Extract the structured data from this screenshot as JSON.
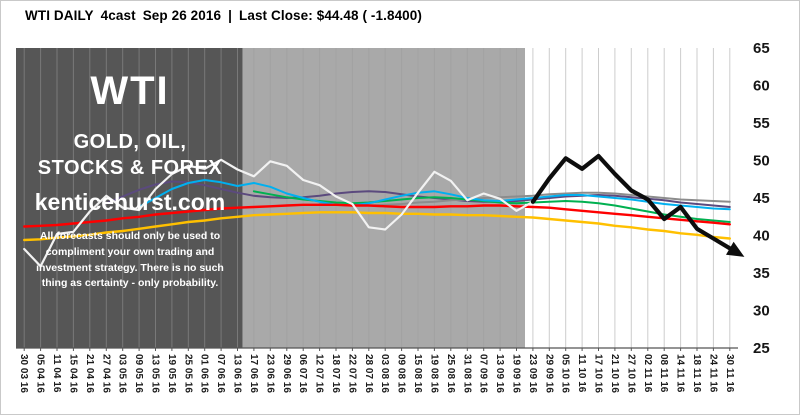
{
  "header": {
    "instrument": "WTI DAILY",
    "method": "4cast",
    "date_text": "Sep 26 2016",
    "divider": "|",
    "close_text": "Last Close: $44.48 ( -1.8400)"
  },
  "overlay": {
    "symbol": "WTI",
    "line1": "GOLD, OIL,",
    "line2": "STOCKS & FOREX",
    "site": "kenticehurst.com",
    "disclaimer": "All forecasts should only be used to compliment your own trading and investment strategy. There is no such thing as certainty - only probability."
  },
  "chart_data": {
    "type": "line",
    "title": "WTI DAILY 4cast Sep 26 2016 | Last Close: $44.48 ( -1.8400)",
    "ylim": [
      25,
      65
    ],
    "y_ticks": [
      65,
      60,
      55,
      50,
      45,
      40,
      35,
      30,
      25
    ],
    "grid": "vertical",
    "legend": "none",
    "categories": [
      "30 03 16",
      "05 04 16",
      "11 04 16",
      "15 04 16",
      "21 04 16",
      "27 04 16",
      "03 05 16",
      "09 05 16",
      "13 05 16",
      "19 05 16",
      "25 05 16",
      "01 06 16",
      "07 06 16",
      "13 06 16",
      "17 06 16",
      "23 06 16",
      "29 06 16",
      "06 07 16",
      "12 07 16",
      "18 07 16",
      "22 07 16",
      "28 07 16",
      "03 08 16",
      "09 08 16",
      "15 08 16",
      "19 08 16",
      "25 08 16",
      "31 08 16",
      "07 09 16",
      "13 09 16",
      "19 09 16",
      "23 09 16",
      "29 09 16",
      "05 10 16",
      "11 10 16",
      "17 10 16",
      "21 10 16",
      "27 10 16",
      "02 11 16",
      "08 11 16",
      "14 11 16",
      "18 11 16",
      "24 11 16",
      "30 11 16"
    ],
    "regions": [
      {
        "name": "history-dark",
        "from_frac": 0.0,
        "to_frac": 0.314,
        "color": "#565656"
      },
      {
        "name": "history-light",
        "from_frac": 0.314,
        "to_frac": 0.705,
        "color": "#a9a9a9"
      },
      {
        "name": "forecast-zone",
        "from_frac": 0.705,
        "to_frac": 1.0,
        "color": "#ffffff"
      }
    ],
    "series": [
      {
        "name": "purple-model",
        "color": "#5b4a7e",
        "width": 2,
        "values": [
          null,
          null,
          null,
          null,
          null,
          44.3,
          45.2,
          46.1,
          46.8,
          47.2,
          47.1,
          46.7,
          46.2,
          45.7,
          45.3,
          45.1,
          45.0,
          45.1,
          45.3,
          45.6,
          45.8,
          45.9,
          45.8,
          45.5,
          45.2,
          45.0,
          44.8,
          44.6,
          44.5,
          44.5,
          44.6,
          44.8,
          45.0,
          45.2,
          45.3,
          45.4,
          45.3,
          45.1,
          44.9,
          44.7,
          44.4,
          44.2,
          44.0,
          43.8
        ]
      },
      {
        "name": "gray-model",
        "color": "#8c8c8c",
        "width": 2,
        "values": [
          null,
          null,
          null,
          null,
          null,
          null,
          null,
          null,
          null,
          null,
          null,
          null,
          null,
          null,
          null,
          null,
          null,
          null,
          44.2,
          44.1,
          44.0,
          44.0,
          44.1,
          44.2,
          44.4,
          44.5,
          44.7,
          44.8,
          45.0,
          45.1,
          45.2,
          45.3,
          45.5,
          45.6,
          45.7,
          45.7,
          45.6,
          45.4,
          45.2,
          45.0,
          44.8,
          44.7,
          44.6,
          44.5
        ]
      },
      {
        "name": "green-model",
        "color": "#00b050",
        "width": 2,
        "values": [
          null,
          null,
          null,
          null,
          null,
          null,
          null,
          null,
          null,
          null,
          null,
          null,
          null,
          null,
          45.9,
          45.5,
          45.1,
          44.8,
          44.6,
          44.4,
          44.3,
          44.4,
          44.6,
          44.8,
          45.0,
          45.1,
          45.0,
          44.8,
          44.6,
          44.4,
          44.3,
          44.4,
          44.5,
          44.6,
          44.5,
          44.3,
          44.0,
          43.6,
          43.2,
          42.8,
          42.5,
          42.2,
          42.0,
          41.8
        ]
      },
      {
        "name": "cyan-model",
        "color": "#00b0f0",
        "width": 2,
        "values": [
          null,
          null,
          null,
          null,
          null,
          null,
          null,
          43.8,
          45.0,
          46.2,
          47.0,
          47.4,
          47.1,
          46.6,
          47.0,
          46.5,
          45.6,
          45.0,
          44.5,
          44.1,
          44.0,
          44.3,
          44.8,
          45.3,
          45.7,
          45.9,
          45.5,
          45.0,
          44.7,
          44.6,
          44.8,
          45.0,
          45.2,
          45.4,
          45.4,
          45.2,
          45.0,
          44.8,
          44.5,
          44.2,
          44.0,
          43.8,
          43.6,
          43.5
        ]
      },
      {
        "name": "yellow-ma",
        "color": "#ffc000",
        "width": 2.4,
        "values": [
          39.4,
          39.5,
          39.7,
          39.9,
          40.1,
          40.4,
          40.6,
          40.9,
          41.2,
          41.5,
          41.8,
          42.0,
          42.3,
          42.5,
          42.7,
          42.8,
          42.9,
          43.0,
          43.1,
          43.1,
          43.1,
          43.0,
          43.0,
          42.9,
          42.9,
          42.8,
          42.8,
          42.7,
          42.7,
          42.6,
          42.5,
          42.4,
          42.2,
          42.0,
          41.8,
          41.6,
          41.3,
          41.1,
          40.8,
          40.6,
          40.3,
          40.1,
          39.8,
          39.6
        ]
      },
      {
        "name": "red-ma",
        "color": "#fe0000",
        "width": 2.4,
        "values": [
          41.2,
          41.3,
          41.4,
          41.6,
          41.8,
          42.0,
          42.3,
          42.5,
          42.8,
          43.0,
          43.2,
          43.4,
          43.6,
          43.7,
          43.8,
          43.9,
          44.0,
          44.1,
          44.1,
          44.1,
          44.0,
          44.0,
          43.9,
          43.8,
          43.8,
          43.8,
          43.9,
          43.9,
          44.0,
          44.0,
          43.9,
          43.8,
          43.7,
          43.5,
          43.3,
          43.1,
          42.9,
          42.7,
          42.5,
          42.3,
          42.1,
          41.9,
          41.7,
          41.5
        ]
      },
      {
        "name": "price-history",
        "color": "#f2f2f2",
        "width": 2.2,
        "values": [
          38.2,
          35.9,
          40.2,
          40.5,
          43.2,
          45.3,
          43.7,
          43.4,
          46.2,
          48.2,
          49.3,
          48.9,
          50.1,
          48.8,
          47.9,
          49.9,
          49.3,
          47.4,
          46.7,
          45.2,
          44.2,
          41.1,
          40.8,
          42.8,
          45.7,
          48.5,
          47.3,
          44.7,
          45.6,
          44.9,
          43.3,
          44.5,
          null,
          null,
          null,
          null,
          null,
          null,
          null,
          null,
          null,
          null,
          null,
          null
        ]
      },
      {
        "name": "forecast-path",
        "color": "#0d0d0d",
        "width": 4.2,
        "arrow": true,
        "values": [
          null,
          null,
          null,
          null,
          null,
          null,
          null,
          null,
          null,
          null,
          null,
          null,
          null,
          null,
          null,
          null,
          null,
          null,
          null,
          null,
          null,
          null,
          null,
          null,
          null,
          null,
          null,
          null,
          null,
          null,
          null,
          44.5,
          47.6,
          50.3,
          48.9,
          50.6,
          48.2,
          46.0,
          44.8,
          42.2,
          43.8,
          40.9,
          39.6,
          38.3
        ]
      }
    ]
  }
}
